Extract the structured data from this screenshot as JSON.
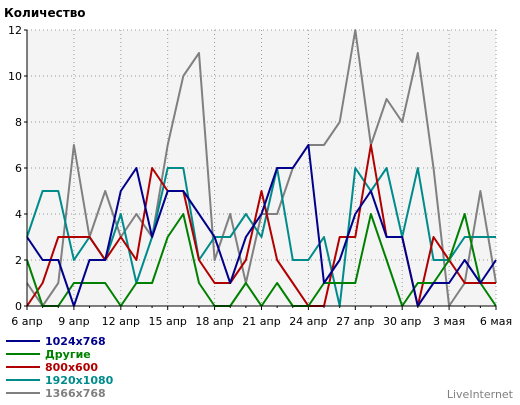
{
  "chart_data": {
    "type": "line",
    "ylabel": "Количество",
    "ylim": [
      0,
      12
    ],
    "yticks": [
      0,
      2,
      4,
      6,
      8,
      10,
      12
    ],
    "x": [
      "6 апр",
      "7 апр",
      "8 апр",
      "9 апр",
      "10 апр",
      "11 апр",
      "12 апр",
      "13 апр",
      "14 апр",
      "15 апр",
      "16 апр",
      "17 апр",
      "18 апр",
      "19 апр",
      "20 апр",
      "21 апр",
      "22 апр",
      "23 апр",
      "24 апр",
      "25 апр",
      "26 апр",
      "27 апр",
      "28 апр",
      "29 апр",
      "30 апр",
      "1 мая",
      "2 мая",
      "3 мая",
      "4 мая",
      "5 мая",
      "6 мая"
    ],
    "xtick_labels": [
      "6 апр",
      "9 апр",
      "12 апр",
      "15 апр",
      "18 апр",
      "21 апр",
      "24 апр",
      "27 апр",
      "30 апр",
      "3 мая",
      "6 мая"
    ],
    "grid": true,
    "legend_position": "bottom-left",
    "series": [
      {
        "name": "1024x768",
        "color": "#00008b",
        "values": [
          3,
          2,
          2,
          0,
          2,
          2,
          5,
          6,
          3,
          5,
          5,
          4,
          3,
          1,
          3,
          4,
          6,
          6,
          7,
          1,
          2,
          4,
          5,
          3,
          3,
          0,
          1,
          1,
          2,
          1,
          2
        ]
      },
      {
        "name": "Другие",
        "color": "#008000",
        "values": [
          2,
          0,
          0,
          1,
          1,
          1,
          0,
          1,
          1,
          3,
          4,
          1,
          0,
          0,
          1,
          0,
          1,
          0,
          0,
          1,
          1,
          1,
          4,
          2,
          0,
          1,
          1,
          2,
          4,
          1,
          0
        ]
      },
      {
        "name": "800x600",
        "color": "#b00000",
        "values": [
          0,
          1,
          3,
          3,
          3,
          2,
          3,
          2,
          6,
          5,
          5,
          2,
          1,
          1,
          2,
          5,
          2,
          1,
          0,
          0,
          3,
          3,
          7,
          3,
          3,
          0,
          3,
          2,
          1,
          1,
          1
        ]
      },
      {
        "name": "1920x1080",
        "color": "#008b8b",
        "values": [
          3,
          5,
          5,
          2,
          3,
          2,
          4,
          1,
          3,
          6,
          6,
          2,
          3,
          3,
          4,
          3,
          6,
          2,
          2,
          3,
          0,
          6,
          5,
          6,
          3,
          6,
          2,
          2,
          3,
          3,
          3
        ]
      },
      {
        "name": "1366x768",
        "color": "#808080",
        "values": [
          1,
          0,
          1,
          7,
          3,
          5,
          3,
          4,
          3,
          7,
          10,
          11,
          2,
          4,
          1,
          4,
          4,
          6,
          7,
          7,
          8,
          12,
          7,
          9,
          8,
          11,
          6,
          0,
          1,
          5,
          1
        ]
      }
    ]
  },
  "watermark": "LiveInternet"
}
